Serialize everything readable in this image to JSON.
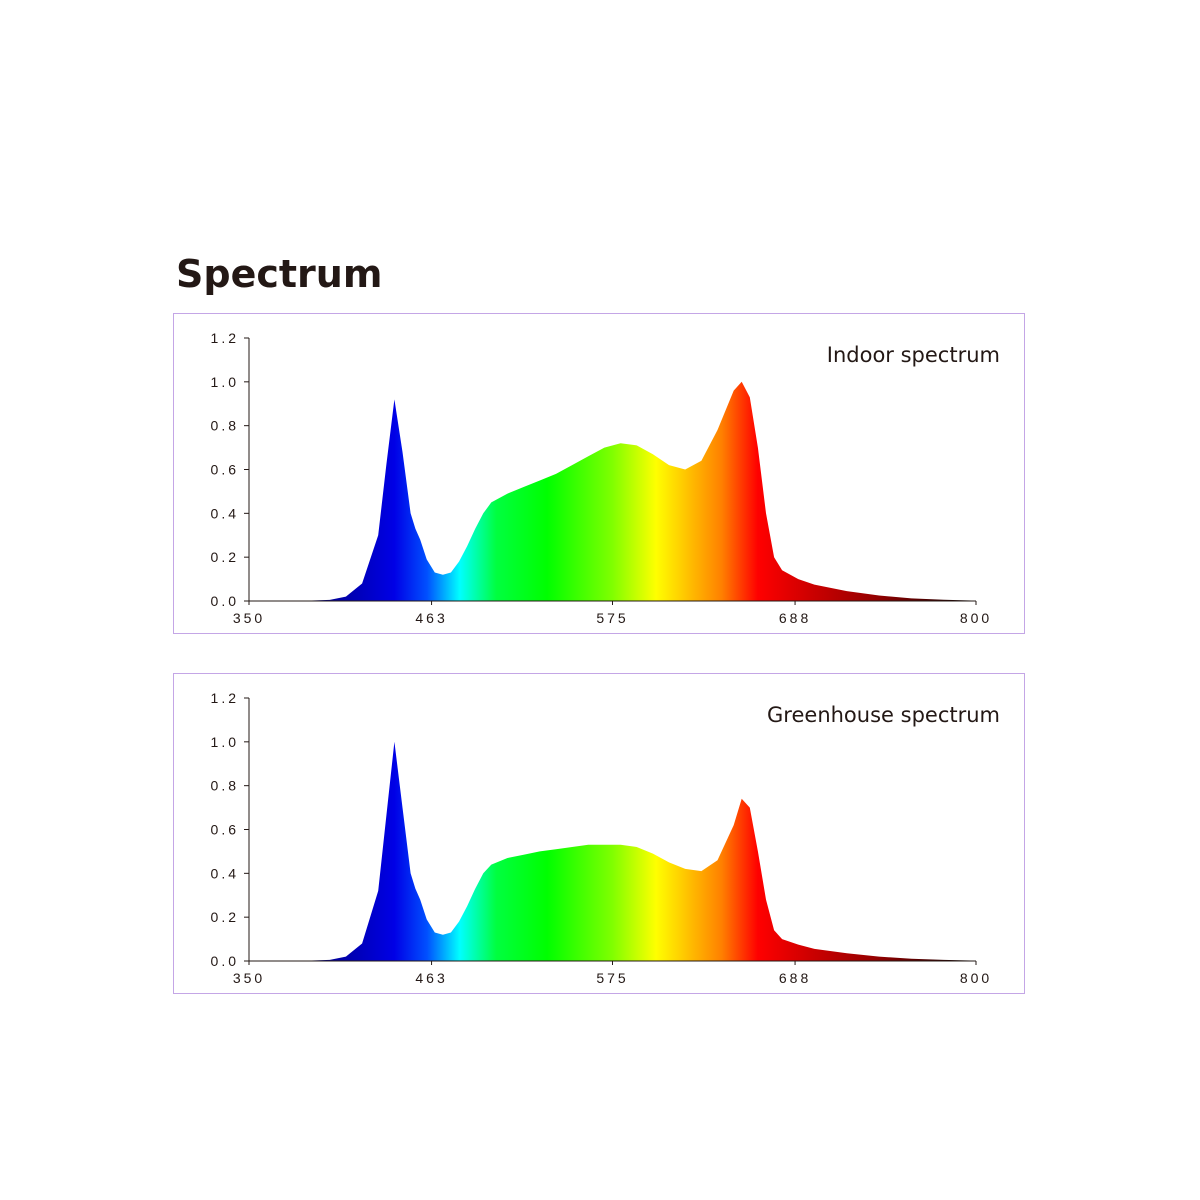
{
  "page": {
    "title": "Spectrum"
  },
  "colors": {
    "panel_border": "#c4a6e6",
    "axis": "#231815",
    "gradient": [
      "#000033",
      "#000090",
      "#0000e6",
      "#0050ff",
      "#00ffff",
      "#00ff40",
      "#00ff00",
      "#80ff00",
      "#ffff00",
      "#ff8000",
      "#ff0000",
      "#c80000",
      "#960000",
      "#500000",
      "#000000"
    ]
  },
  "chart_data": [
    {
      "type": "area",
      "label": "Indoor spectrum",
      "x_ticks": [
        "350",
        "463",
        "575",
        "688",
        "800"
      ],
      "y_ticks": [
        "0.0",
        "0.2",
        "0.4",
        "0.6",
        "0.8",
        "1.0",
        "1.2"
      ],
      "xlim": [
        350,
        800
      ],
      "ylim": [
        0,
        1.2
      ],
      "x": [
        350,
        380,
        400,
        410,
        420,
        430,
        435,
        440,
        445,
        450,
        453,
        456,
        460,
        465,
        470,
        475,
        480,
        485,
        490,
        495,
        500,
        510,
        520,
        530,
        540,
        550,
        560,
        570,
        580,
        590,
        600,
        610,
        620,
        630,
        640,
        650,
        655,
        660,
        665,
        670,
        675,
        680,
        690,
        700,
        720,
        740,
        760,
        780,
        800
      ],
      "y": [
        0.0,
        0.0,
        0.005,
        0.02,
        0.08,
        0.3,
        0.62,
        0.92,
        0.68,
        0.4,
        0.33,
        0.28,
        0.19,
        0.13,
        0.12,
        0.13,
        0.18,
        0.25,
        0.33,
        0.4,
        0.45,
        0.49,
        0.52,
        0.55,
        0.58,
        0.62,
        0.66,
        0.7,
        0.72,
        0.71,
        0.67,
        0.62,
        0.6,
        0.64,
        0.78,
        0.96,
        1.0,
        0.93,
        0.7,
        0.4,
        0.2,
        0.14,
        0.1,
        0.075,
        0.045,
        0.025,
        0.012,
        0.006,
        0.002
      ]
    },
    {
      "type": "area",
      "label": "Greenhouse spectrum",
      "x_ticks": [
        "350",
        "463",
        "575",
        "688",
        "800"
      ],
      "y_ticks": [
        "0.0",
        "0.2",
        "0.4",
        "0.6",
        "0.8",
        "1.0",
        "1.2"
      ],
      "xlim": [
        350,
        800
      ],
      "ylim": [
        0,
        1.2
      ],
      "x": [
        350,
        380,
        400,
        410,
        420,
        430,
        435,
        440,
        445,
        450,
        453,
        456,
        460,
        465,
        470,
        475,
        480,
        485,
        490,
        495,
        500,
        510,
        520,
        530,
        540,
        550,
        560,
        570,
        580,
        590,
        600,
        610,
        620,
        630,
        640,
        650,
        655,
        660,
        665,
        670,
        675,
        680,
        690,
        700,
        720,
        740,
        760,
        780,
        800
      ],
      "y": [
        0.0,
        0.0,
        0.005,
        0.02,
        0.08,
        0.32,
        0.66,
        1.0,
        0.7,
        0.4,
        0.33,
        0.28,
        0.19,
        0.13,
        0.12,
        0.13,
        0.18,
        0.25,
        0.33,
        0.4,
        0.44,
        0.47,
        0.485,
        0.5,
        0.51,
        0.52,
        0.53,
        0.53,
        0.53,
        0.52,
        0.49,
        0.45,
        0.42,
        0.41,
        0.46,
        0.62,
        0.74,
        0.7,
        0.5,
        0.28,
        0.14,
        0.1,
        0.075,
        0.055,
        0.035,
        0.02,
        0.01,
        0.005,
        0.002
      ]
    }
  ]
}
